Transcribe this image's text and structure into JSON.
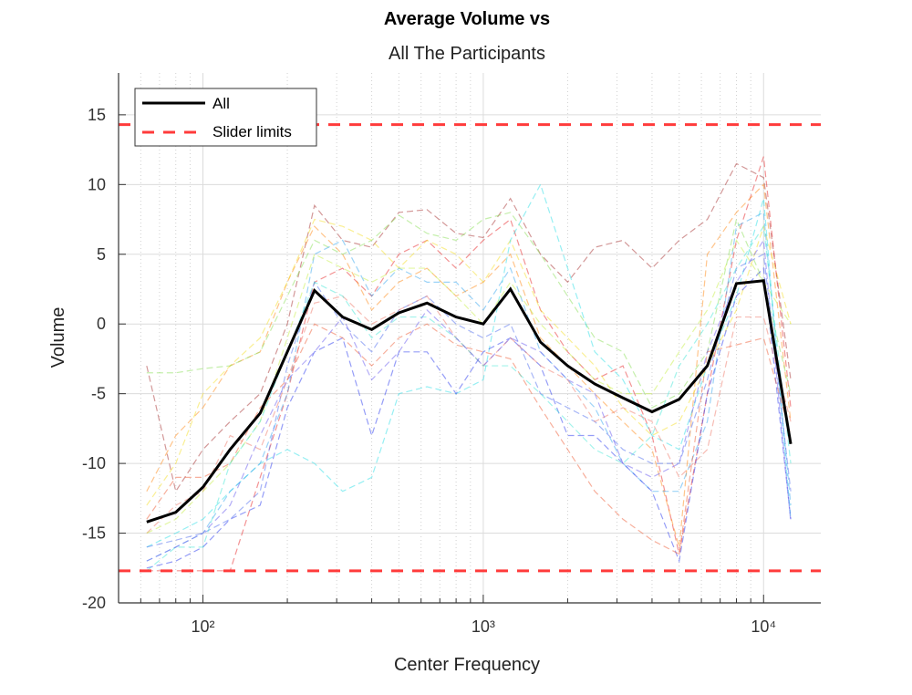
{
  "chart_data": {
    "type": "line",
    "title": "Average Volume vs",
    "subtitle": "All The Participants",
    "xlabel": "Center Frequency",
    "ylabel": "Volume",
    "xscale": "log",
    "xlim": [
      50,
      16000
    ],
    "ylim": [
      -20,
      18
    ],
    "grid": true,
    "legend_placement": "top-left",
    "x_ticks": [
      100,
      1000,
      10000
    ],
    "x_tick_labels": [
      "10²",
      "10³",
      "10⁴"
    ],
    "y_ticks": [
      -20,
      -15,
      -10,
      -5,
      0,
      5,
      10,
      15
    ],
    "y_tick_labels": [
      "-20",
      "-15",
      "-10",
      "-5",
      "0",
      "5",
      "10",
      "15"
    ],
    "x": [
      63,
      80,
      100,
      125,
      160,
      200,
      250,
      315,
      400,
      500,
      630,
      800,
      1000,
      1250,
      1600,
      2000,
      2500,
      3150,
      4000,
      5000,
      6300,
      8000,
      10000,
      12500
    ],
    "average": {
      "name": "All",
      "color": "#000000",
      "values": [
        -14.2,
        -13.5,
        -11.7,
        -9.0,
        -6.4,
        -2.0,
        2.4,
        0.5,
        -0.4,
        0.8,
        1.5,
        0.5,
        0.0,
        2.5,
        -1.3,
        -3.0,
        -4.3,
        -5.3,
        -6.3,
        -5.4,
        -3.0,
        2.9,
        3.1,
        -8.6
      ]
    },
    "slider_limits": {
      "name": "Slider limits",
      "color": "#ff3b3b",
      "values": [
        14.3,
        -17.7
      ]
    },
    "participants": [
      {
        "color": "#a83232",
        "values": [
          -3,
          -12,
          -9,
          -7,
          -5,
          0,
          8.5,
          6,
          5.5,
          8,
          8.2,
          6.5,
          6.2,
          9,
          5,
          3,
          5.5,
          6,
          4,
          6,
          7.5,
          11.5,
          10.5,
          -4
        ]
      },
      {
        "color": "#e8282a",
        "values": [
          -17.7,
          -17.7,
          -17.7,
          -17.7,
          -11,
          -5,
          3,
          4,
          2,
          5,
          6,
          4,
          6,
          7.5,
          1,
          -2,
          -4,
          -3,
          -8,
          -16.5,
          -5,
          6,
          12,
          -6
        ]
      },
      {
        "color": "#ff8c1a",
        "values": [
          -12,
          -8,
          -6,
          -3,
          -2,
          3,
          7,
          5,
          1,
          3,
          4,
          2,
          3,
          5,
          -1,
          -3,
          -5,
          -7,
          -9,
          -16,
          5,
          8,
          10,
          -7
        ]
      },
      {
        "color": "#f5e02a",
        "values": [
          -13,
          -10,
          -5,
          -3,
          -1,
          3,
          7.5,
          7,
          6,
          4,
          6,
          5,
          3,
          6,
          1,
          -1,
          -3,
          -6,
          -8,
          -7,
          -3,
          1,
          7,
          0
        ]
      },
      {
        "color": "#8be05a",
        "values": [
          -3.5,
          -3.5,
          -3.2,
          -3,
          -2,
          2,
          6,
          5,
          6,
          7.8,
          6.5,
          6,
          7.5,
          8,
          5,
          2,
          -1,
          -2,
          -6,
          -5,
          -2,
          7.5,
          3,
          -5
        ]
      },
      {
        "color": "#2fe0e8",
        "values": [
          -16,
          -15,
          -14,
          -12,
          -10,
          -9,
          -10,
          -12,
          -11,
          -5,
          -4.5,
          -5,
          -4,
          6,
          10,
          4,
          -2,
          -4,
          -8,
          -9,
          -3,
          2,
          9,
          -14
        ]
      },
      {
        "color": "#3aa8f0",
        "values": [
          -17,
          -16,
          -15,
          -12,
          -10,
          -5,
          5,
          6,
          2,
          4,
          3,
          3,
          1,
          4,
          -2,
          -4,
          -6,
          -10,
          -12,
          -12,
          -7,
          7,
          8,
          -13
        ]
      },
      {
        "color": "#2b3cf0",
        "values": [
          -17.5,
          -17,
          -16,
          -14,
          -13,
          -6,
          -2,
          -1,
          -8,
          -2,
          -2,
          -5,
          -2,
          -1,
          -3,
          -8,
          -8,
          -10,
          -12,
          -17,
          -5,
          2,
          4,
          -14
        ]
      },
      {
        "color": "#4f6ef0",
        "values": [
          -16,
          -15.5,
          -15,
          -14,
          -12,
          -3,
          3,
          0,
          -2,
          1,
          2,
          0,
          -1,
          0,
          -5,
          -6,
          -7,
          -9,
          -10,
          -10,
          -4,
          4,
          5,
          -12
        ]
      },
      {
        "color": "#f07a6a",
        "values": [
          -15,
          -13,
          -12,
          -8,
          -9,
          -4,
          1.5,
          2,
          0,
          1,
          2,
          -1,
          -3,
          -1,
          -3,
          -4,
          -7,
          -6,
          -7,
          -11,
          -9,
          0.5,
          0.5,
          -7
        ]
      },
      {
        "color": "#f0603a",
        "values": [
          -14,
          -11,
          -11,
          -10,
          -6,
          -4,
          0,
          -1,
          -3,
          -1,
          0,
          -1.5,
          -2,
          -2.5,
          -6,
          -9,
          -12,
          -14,
          -15.5,
          -16.5,
          -2,
          -1.5,
          -1,
          -8
        ]
      },
      {
        "color": "#c8f04a",
        "values": [
          -15,
          -14,
          -12,
          -10,
          -7,
          -1,
          5,
          4,
          3,
          4,
          4,
          2,
          0,
          3,
          0,
          -2,
          -4,
          -5,
          -5,
          -2,
          1,
          6,
          3,
          0
        ]
      },
      {
        "color": "#48e8d8",
        "values": [
          -17.7,
          -16,
          -16,
          -10,
          -7,
          -2,
          3,
          2,
          -1,
          0.5,
          0.5,
          -1,
          -3,
          -3,
          -5,
          -7,
          -9,
          -10,
          -8,
          -3,
          0,
          4,
          7,
          -10
        ]
      },
      {
        "color": "#6a5cf0",
        "values": [
          -17,
          -16,
          -15,
          -13,
          -8,
          -4,
          -2,
          0.5,
          -4,
          -2,
          1,
          -1,
          -3,
          -1,
          -2,
          -4,
          -5,
          -10,
          -11,
          -10,
          -2,
          3,
          6,
          -14.2
        ]
      }
    ]
  }
}
